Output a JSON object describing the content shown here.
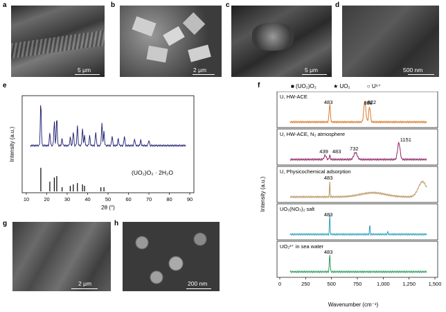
{
  "panels": {
    "a": {
      "label": "a",
      "scale": "5 μm"
    },
    "b": {
      "label": "b",
      "scale": "2 μm"
    },
    "c": {
      "label": "c",
      "scale": "5 μm"
    },
    "d": {
      "label": "d",
      "scale": "500 nm"
    },
    "g": {
      "label": "g",
      "scale": "2 μm"
    },
    "h": {
      "label": "h",
      "scale": "200 nm"
    }
  },
  "panel_e": {
    "label": "e",
    "ylabel": "Intensity (a.u.)",
    "xlabel": "2θ (°)",
    "xticks": [
      "10",
      "20",
      "30",
      "40",
      "50",
      "60",
      "70",
      "80",
      "90"
    ],
    "compound": "(UO₂)O₂ · 2H₂O"
  },
  "panel_f": {
    "label": "f",
    "legend": [
      "■ (UO₂)O₂",
      "★ UO₂",
      "○ U⁶⁺"
    ],
    "ylabel": "Intensity (a.u.)",
    "xlabel": "Wavenumber (cm⁻¹)",
    "xticks": [
      "0",
      "250",
      "500",
      "750",
      "1,000",
      "1,250",
      "1,500"
    ],
    "traces": [
      {
        "name": "U, HW-ACE",
        "color": "#d9792a",
        "peaks": [
          "483",
          "822",
          "868"
        ]
      },
      {
        "name": "U, HW-ACE, N₂ atmosphere",
        "color": "#8f2266",
        "peaks": [
          "439",
          "483",
          "732",
          "1151"
        ]
      },
      {
        "name": "U, Physicochemical adsorption",
        "color": "#b99460",
        "peaks": [
          "483"
        ]
      },
      {
        "name": "UO₂(NO₃)₂ salt",
        "color": "#2fa0c0",
        "peaks": [
          "483"
        ]
      },
      {
        "name": "UO₂²⁺ in sea water",
        "color": "#2a9c5b",
        "peaks": [
          "483"
        ]
      }
    ]
  },
  "colors": {
    "xrd": "#1a1a6e",
    "bar": "#000000",
    "frame": "#555555"
  }
}
